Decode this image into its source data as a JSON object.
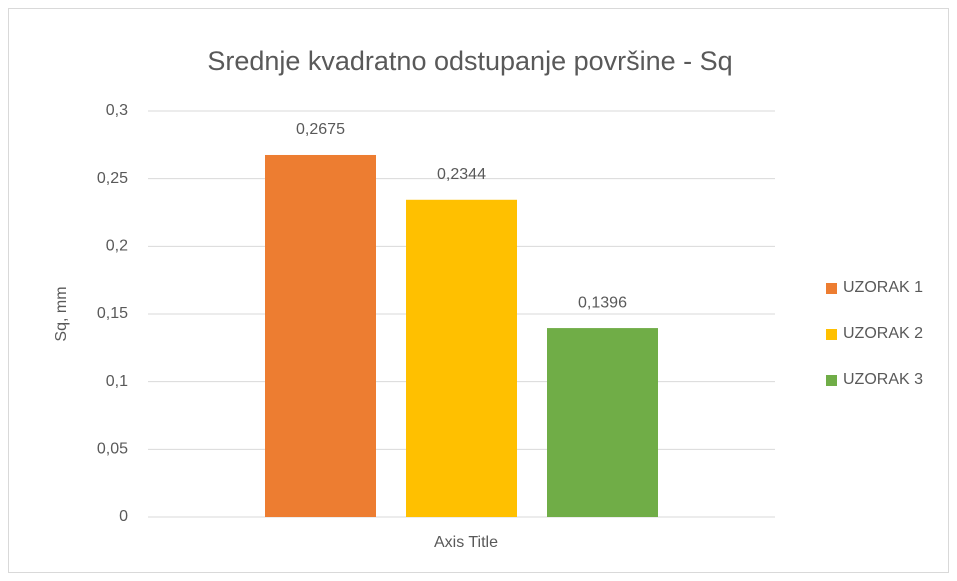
{
  "chart_data": {
    "type": "bar",
    "title": "Srednje kvadratno odstupanje površine - Sq",
    "x_label": "Axis Title",
    "y_label": "Sq, mm",
    "categories": [
      null
    ],
    "series": [
      {
        "name": "UZORAK 1",
        "color": "#ed7d31",
        "values": [
          0.2675
        ],
        "value_labels": [
          "0,2675"
        ]
      },
      {
        "name": "UZORAK 2",
        "color": "#ffc000",
        "values": [
          0.2344
        ],
        "value_labels": [
          "0,2344"
        ]
      },
      {
        "name": "UZORAK 3",
        "color": "#70ad47",
        "values": [
          0.1396
        ],
        "value_labels": [
          "0,1396"
        ]
      }
    ],
    "ylim": [
      0,
      0.3
    ],
    "yticks": [
      0,
      {
        "value": 0.05,
        "label": "0,05"
      },
      {
        "value": 0.1,
        "label": "0,1"
      },
      {
        "value": 0.15,
        "label": "0,15"
      },
      {
        "value": 0.2,
        "label": "0,2"
      },
      {
        "value": 0.25,
        "label": "0,25"
      },
      {
        "value": 0.3,
        "label": "0,3"
      }
    ],
    "grid": true,
    "legend": "right"
  }
}
